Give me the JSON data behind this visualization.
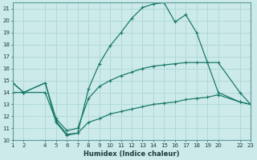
{
  "xlabel": "Humidex (Indice chaleur)",
  "background_color": "#cdeaea",
  "grid_color": "#b0d8d8",
  "line_color": "#1a7a6a",
  "xlim": [
    1,
    23
  ],
  "ylim": [
    10,
    21.5
  ],
  "xticks": [
    1,
    2,
    4,
    5,
    6,
    7,
    8,
    9,
    10,
    11,
    12,
    13,
    14,
    15,
    16,
    17,
    18,
    19,
    20,
    22,
    23
  ],
  "yticks": [
    10,
    11,
    12,
    13,
    14,
    15,
    16,
    17,
    18,
    19,
    20,
    21
  ],
  "line1_x": [
    1,
    2,
    4,
    5,
    6,
    7,
    8,
    9,
    10,
    11,
    12,
    13,
    14,
    15,
    16,
    17,
    18,
    19,
    20,
    22,
    23
  ],
  "line1_y": [
    14.8,
    14.0,
    14.8,
    11.5,
    10.4,
    10.6,
    14.3,
    16.4,
    17.9,
    19.0,
    20.2,
    21.1,
    21.4,
    21.5,
    19.9,
    20.5,
    19.0,
    16.5,
    14.0,
    13.2,
    13.0
  ],
  "line2_x": [
    1,
    2,
    4,
    5,
    6,
    7,
    8,
    9,
    10,
    11,
    12,
    13,
    14,
    15,
    16,
    17,
    18,
    19,
    20,
    22,
    23
  ],
  "line2_y": [
    14.8,
    14.0,
    14.8,
    11.8,
    10.8,
    11.0,
    13.5,
    14.5,
    15.0,
    15.4,
    15.7,
    16.0,
    16.2,
    16.3,
    16.4,
    16.5,
    16.5,
    16.5,
    16.5,
    14.0,
    13.0
  ],
  "line3_x": [
    1,
    2,
    4,
    5,
    6,
    7,
    8,
    9,
    10,
    11,
    12,
    13,
    14,
    15,
    16,
    17,
    18,
    19,
    20,
    22,
    23
  ],
  "line3_y": [
    14.0,
    14.0,
    14.0,
    11.6,
    10.5,
    10.6,
    11.5,
    11.8,
    12.2,
    12.4,
    12.6,
    12.8,
    13.0,
    13.1,
    13.2,
    13.4,
    13.5,
    13.6,
    13.8,
    13.2,
    13.0
  ]
}
